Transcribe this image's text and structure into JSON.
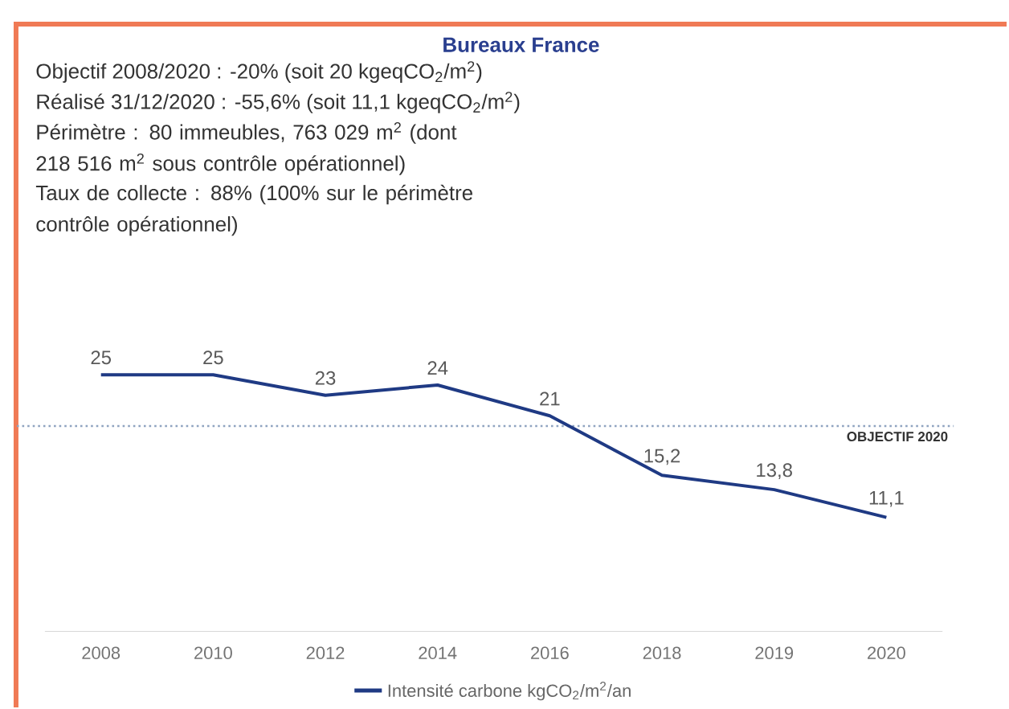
{
  "chart_data": {
    "type": "line",
    "title": "Bureaux France",
    "annotations": [
      "Objectif 2008/2020 : -20% (soit 20 kgeqCO$_{2}$/m$^{2}$)",
      "Réalisé 31/12/2020 : -55,6% (soit 11,1 kgeqCO$_{2}$/m$^{2}$)",
      "Périmètre : 80 immeubles, 763 029 m$^{2}$ (dont 218 516 m$^{2}$ sous contrôle opérationnel)",
      "Taux de collecte : 88% (100% sur le périmètre contrôle opérationnel)"
    ],
    "categories": [
      "2008",
      "2010",
      "2012",
      "2014",
      "2016",
      "2018",
      "2019",
      "2020"
    ],
    "series": [
      {
        "name": "Intensité carbone kgCO$_{2}$/m$^{2}$/an",
        "color": "#1f3a84",
        "values": [
          25,
          25,
          23,
          24,
          21,
          15.2,
          13.8,
          11.1
        ],
        "value_labels": [
          "25",
          "25",
          "23",
          "24",
          "21",
          "15,2",
          "13,8",
          "11,1"
        ]
      }
    ],
    "ref_lines": [
      {
        "axis": "y",
        "value": 20,
        "label": "OBJECTIF 2020",
        "color": "#8fa3c0",
        "line_style": "dotted"
      }
    ],
    "legend": "bottom",
    "marker": "none",
    "line_style": "solid"
  }
}
